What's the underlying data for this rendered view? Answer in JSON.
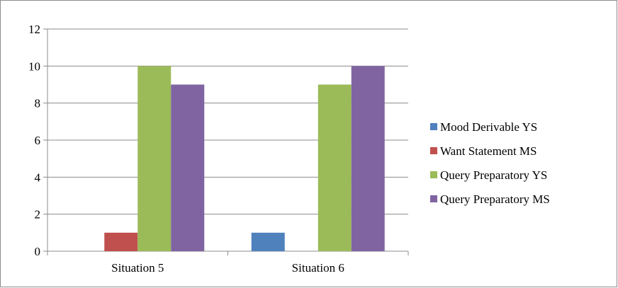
{
  "chart_data": {
    "type": "bar",
    "categories": [
      "Situation 5",
      "Situation 6"
    ],
    "series": [
      {
        "name": "Mood Derivable YS",
        "color": "#4f81bd",
        "values": [
          0,
          1
        ]
      },
      {
        "name": "Want Statement MS",
        "color": "#c0504d",
        "values": [
          1,
          0
        ]
      },
      {
        "name": "Query Preparatory YS",
        "color": "#9bbb59",
        "values": [
          10,
          9
        ]
      },
      {
        "name": "Query Preparatory MS",
        "color": "#8064a2",
        "values": [
          9,
          10
        ]
      }
    ],
    "ylim": [
      0,
      12
    ],
    "yticks": [
      0,
      2,
      4,
      6,
      8,
      10,
      12
    ],
    "grid": true,
    "legend": "right",
    "title": "",
    "xlabel": "",
    "ylabel": ""
  }
}
